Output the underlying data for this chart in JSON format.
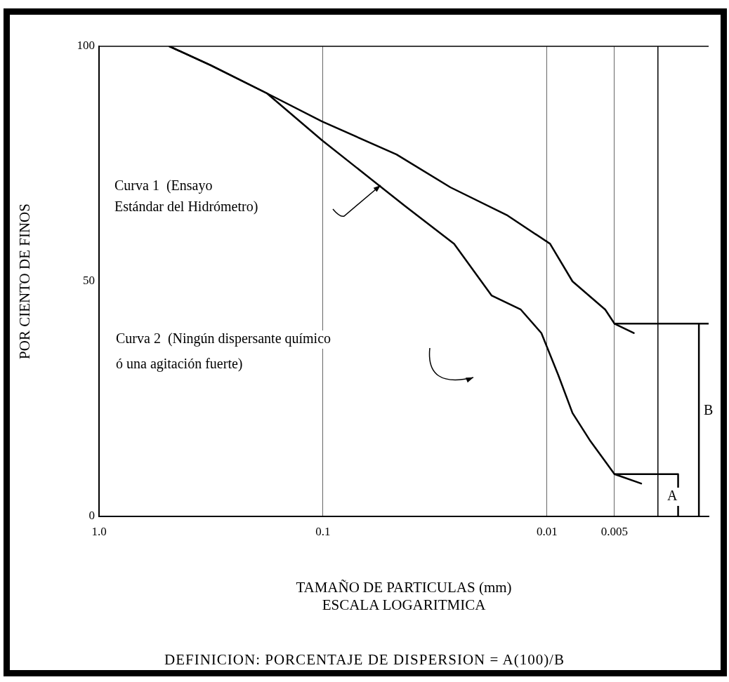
{
  "chart_data": {
    "type": "line",
    "xlabel": "TAMAÑO DE PARTICULAS (mm)\nESCALA LOGARITMICA",
    "ylabel": "POR CIENTO DE FINOS",
    "log": "x",
    "xlim": [
      1,
      0.0019
    ],
    "xticks": [
      {
        "value": 1,
        "label": "1.0"
      },
      0.1,
      0.01,
      0.005
    ],
    "ylim": [
      0,
      100
    ],
    "yticks": [
      0,
      50,
      100
    ],
    "grid": "x",
    "legend": false,
    "marker": "none",
    "series": [
      {
        "color": "#000000",
        "x": [
          0.485,
          0.318,
          0.178,
          0.101,
          0.047,
          0.027,
          0.015,
          0.0097,
          0.0077,
          0.0055,
          0.005,
          0.0041
        ],
        "values": [
          100,
          96,
          90,
          84,
          77,
          70,
          64,
          58,
          50,
          44,
          41,
          39
        ]
      },
      {
        "color": "#000000",
        "x": [
          0.485,
          0.318,
          0.178,
          0.101,
          0.043,
          0.026,
          0.0177,
          0.0131,
          0.0106,
          0.0089,
          0.0077,
          0.0064,
          0.005,
          0.0038
        ],
        "values": [
          100,
          96,
          90,
          80,
          66,
          58,
          47,
          44,
          39,
          30,
          22,
          16,
          9,
          7
        ]
      },
      {
        "color": "#000000",
        "x": [
          0.005,
          0.0026,
          0.0026
        ],
        "values": [
          9,
          9,
          0
        ]
      },
      {
        "color": "#000000",
        "x": [
          0.005,
          0.0019,
          0.0021,
          0.0021
        ],
        "values": [
          41,
          41,
          41,
          0
        ]
      }
    ],
    "ref_lines": [
      {
        "axis": "y",
        "value": 100
      },
      {
        "axis": "x",
        "value": 0.0032
      }
    ],
    "annotations": [
      "Curva 1  (Ensayo\nEstándar del Hidrómetro)",
      "Curva 2  (Ningún dispersante químico\nó una agitación fuerte)",
      "A",
      "B",
      "DEFINICION: PORCENTAJE DE DISPERSION = A(100)/B"
    ]
  }
}
